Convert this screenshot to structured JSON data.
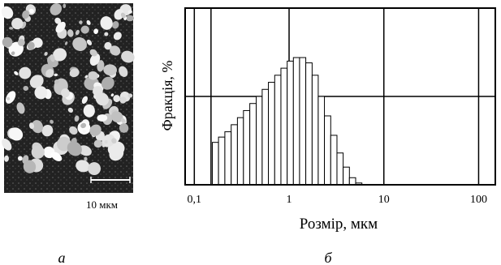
{
  "panel_a": {
    "label": "а",
    "scale_bar_label": "10 мкм"
  },
  "panel_b": {
    "label": "б"
  },
  "chart_data": {
    "type": "bar",
    "title": "",
    "xlabel": "Розмір, мкм",
    "ylabel": "Фракція, %",
    "x_scale": "log",
    "xlim": [
      0.08,
      150
    ],
    "x_ticks": [
      0.1,
      1,
      10,
      100
    ],
    "x_tick_labels": [
      "0,1",
      "1",
      "10",
      "100"
    ],
    "ylim": [
      0,
      1
    ],
    "y_tick_labels": [],
    "grid": true,
    "legend": "none",
    "series": [
      {
        "x": [
          0.155,
          0.18,
          0.21,
          0.245,
          0.285,
          0.33,
          0.385,
          0.45,
          0.52,
          0.605,
          0.705,
          0.82,
          0.955,
          1.11,
          1.29,
          1.5,
          1.75,
          2.03,
          2.36,
          2.75,
          3.2,
          3.72,
          4.33,
          5.04
        ],
        "values": [
          0.24,
          0.27,
          0.3,
          0.34,
          0.38,
          0.42,
          0.46,
          0.5,
          0.54,
          0.58,
          0.62,
          0.66,
          0.7,
          0.72,
          0.72,
          0.69,
          0.62,
          0.5,
          0.39,
          0.28,
          0.18,
          0.1,
          0.04,
          0.01
        ]
      }
    ]
  }
}
